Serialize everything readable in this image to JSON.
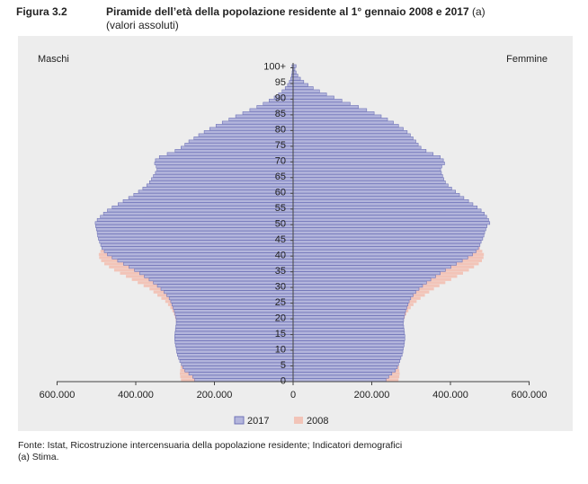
{
  "header": {
    "figure_number": "Figura 3.2",
    "title": "Piramide dell’età della popolazione residente al 1° gennaio 2008 e 2017",
    "title_suffix": "(a)",
    "subtitle": "(valori assoluti)"
  },
  "footer": {
    "source": "Fonte: Istat, Ricostruzione intercensuaria della popolazione residente; Indicatori demografici",
    "note": "(a) Stima."
  },
  "chart_data": {
    "type": "bar",
    "orientation": "horizontal",
    "subtype": "population-pyramid",
    "left_label": "Maschi",
    "right_label": "Femmine",
    "age_tick_labels": [
      "0",
      "5",
      "10",
      "15",
      "20",
      "25",
      "30",
      "35",
      "40",
      "45",
      "50",
      "55",
      "60",
      "65",
      "70",
      "75",
      "80",
      "85",
      "90",
      "95",
      "100+"
    ],
    "x_tick_labels": [
      "600.000",
      "400.000",
      "200.000",
      "0",
      "200.000",
      "400.000",
      "600.000"
    ],
    "x_range": [
      -600000,
      600000
    ],
    "legend_position": "bottom",
    "colors": {
      "2017": "#b4b6dc",
      "2017_border": "#6f73b8",
      "2008": "#f2c4b8",
      "axis": "#444444",
      "panel": "#ededed"
    },
    "series": [
      {
        "name": "2017",
        "males": [
          250000,
          255000,
          265000,
          275000,
          280000,
          284000,
          288000,
          291000,
          294000,
          296000,
          297000,
          299000,
          300000,
          301000,
          301000,
          300000,
          299000,
          298000,
          297000,
          297000,
          298000,
          300000,
          302000,
          305000,
          308000,
          311000,
          315000,
          321000,
          328000,
          336000,
          345000,
          355000,
          366000,
          378000,
          390000,
          403000,
          417000,
          431000,
          446000,
          460000,
          472000,
          480000,
          486000,
          489000,
          492000,
          495000,
          497000,
          498000,
          500000,
          502000,
          503000,
          498000,
          490000,
          482000,
          472000,
          460000,
          445000,
          432000,
          418000,
          405000,
          393000,
          382000,
          372000,
          365000,
          360000,
          355000,
          350000,
          346000,
          348000,
          352000,
          350000,
          340000,
          320000,
          300000,
          285000,
          275000,
          265000,
          252000,
          240000,
          226000,
          212000,
          196000,
          180000,
          163000,
          146000,
          128000,
          110000,
          92000,
          76000,
          61000,
          48000,
          37000,
          28000,
          20000,
          14000,
          9500,
          6200,
          4000,
          2500,
          1500,
          2600
        ],
        "females": [
          236000,
          243000,
          251000,
          260000,
          265000,
          268000,
          271000,
          274000,
          277000,
          279000,
          280000,
          282000,
          283000,
          284000,
          284000,
          283000,
          282000,
          281000,
          280000,
          281000,
          282000,
          284000,
          286000,
          289000,
          292000,
          295000,
          299000,
          305000,
          312000,
          320000,
          329000,
          339000,
          350000,
          362000,
          374000,
          387000,
          401000,
          415000,
          430000,
          444000,
          456000,
          465000,
          471000,
          475000,
          478000,
          482000,
          485000,
          487000,
          490000,
          493000,
          500000,
          497000,
          492000,
          486000,
          478000,
          468000,
          457000,
          446000,
          434000,
          423000,
          413000,
          403000,
          394000,
          387000,
          383000,
          380000,
          377000,
          375000,
          378000,
          385000,
          382000,
          374000,
          356000,
          338000,
          325000,
          318000,
          312000,
          305000,
          298000,
          290000,
          280000,
          268000,
          255000,
          240000,
          224000,
          206000,
          187000,
          166000,
          145000,
          124000,
          104000,
          85000,
          67000,
          51000,
          38000,
          27000,
          18500,
          12000,
          7500,
          4500,
          7500
        ]
      },
      {
        "name": "2008",
        "males": [
          285000,
          287000,
          288000,
          287000,
          286000,
          285000,
          284000,
          283000,
          282000,
          281000,
          282000,
          283000,
          285000,
          287000,
          289000,
          290000,
          292000,
          294000,
          296000,
          298000,
          300000,
          303000,
          307000,
          312000,
          318000,
          325000,
          335000,
          345000,
          355000,
          365000,
          380000,
          395000,
          410000,
          425000,
          440000,
          455000,
          468000,
          480000,
          488000,
          493000,
          494000,
          490000,
          483000,
          475000,
          465000,
          455000,
          446000,
          437000,
          428000,
          420000,
          410000,
          400000,
          390000,
          380000,
          372000,
          365000,
          358000,
          350000,
          342000,
          335000,
          330000,
          326000,
          322000,
          318000,
          320000,
          326000,
          325000,
          315000,
          298000,
          280000,
          265000,
          250000,
          235000,
          218000,
          200000,
          182000,
          163000,
          145000,
          127000,
          110000,
          93000,
          78000,
          64000,
          51000,
          40000,
          31000,
          23000,
          17000,
          12000,
          8500,
          5800,
          3900,
          2600,
          1700,
          1100,
          700,
          450,
          280,
          170,
          100,
          150
        ],
        "females": [
          268000,
          270000,
          271000,
          270000,
          269000,
          268000,
          267000,
          266000,
          265000,
          264000,
          265000,
          266000,
          268000,
          270000,
          272000,
          273000,
          275000,
          277000,
          279000,
          281000,
          284000,
          288000,
          293000,
          299000,
          306000,
          314000,
          324000,
          335000,
          346000,
          358000,
          372000,
          387000,
          402000,
          417000,
          432000,
          447000,
          460000,
          472000,
          480000,
          484000,
          485000,
          481000,
          475000,
          467000,
          458000,
          449000,
          441000,
          433000,
          426000,
          419000,
          411000,
          403000,
          395000,
          387000,
          380000,
          374000,
          368000,
          362000,
          356000,
          351000,
          348000,
          346000,
          344000,
          342000,
          345000,
          352000,
          354000,
          346000,
          332000,
          318000,
          305000,
          292000,
          279000,
          265000,
          251000,
          236000,
          220000,
          203000,
          186000,
          168000,
          150000,
          132000,
          115000,
          98000,
          83000,
          69000,
          56000,
          45000,
          35000,
          27000,
          20000,
          14500,
          10500,
          7300,
          5000,
          3300,
          2100,
          1300,
          800,
          450,
          800
        ]
      }
    ]
  }
}
